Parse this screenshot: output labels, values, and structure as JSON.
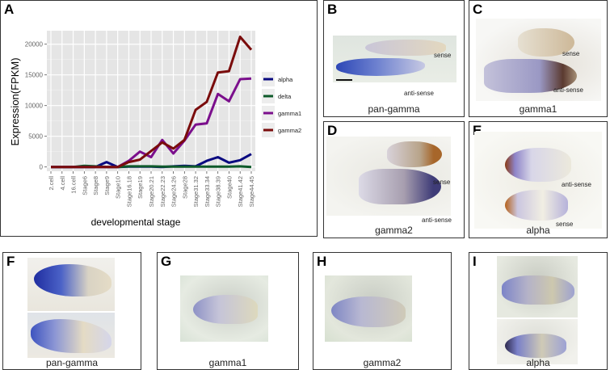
{
  "panels": {
    "A": {
      "label": "A"
    },
    "B": {
      "label": "B",
      "caption": "pan-gamma",
      "annotations": [
        "sense",
        "anti-sense"
      ]
    },
    "C": {
      "label": "C",
      "caption": "gamma1",
      "annotations": [
        "sense",
        "anti-sense"
      ]
    },
    "D": {
      "label": "D",
      "caption": "gamma2",
      "annotations": [
        "sense",
        "anti-sense"
      ]
    },
    "E": {
      "label": "E",
      "caption": "alpha",
      "annotations": [
        "anti-sense",
        "sense"
      ]
    },
    "F": {
      "label": "F",
      "caption": "pan-gamma"
    },
    "G": {
      "label": "G",
      "caption": "gamma1"
    },
    "H": {
      "label": "H",
      "caption": "gamma2"
    },
    "I": {
      "label": "I",
      "caption": "alpha"
    }
  },
  "chart_data": {
    "type": "line",
    "title": "",
    "xlabel": "developmental stage",
    "ylabel": "Expression(FPKM)",
    "ylim": [
      -700,
      22200
    ],
    "yticks": [
      0,
      5000,
      10000,
      15000,
      20000
    ],
    "grid": true,
    "legend_position": "right",
    "categories": [
      "2.cell",
      "4.cell",
      "16.cell",
      "Stage6",
      "Stage8",
      "Stage9",
      "Stage10",
      "Stage16.18",
      "Stage19",
      "Stage20.21",
      "Stage22.23",
      "Stage24.26",
      "Stage28",
      "Stage31.32",
      "Stage33.34",
      "Stage38.39",
      "Stage40",
      "Stage41.42",
      "Stage44.45"
    ],
    "series": [
      {
        "name": "alpha",
        "color": "#0a0a80",
        "values": [
          0,
          0,
          0,
          0,
          0,
          800,
          0,
          50,
          50,
          50,
          0,
          100,
          200,
          100,
          1000,
          1600,
          700,
          1100,
          2100
        ]
      },
      {
        "name": "delta",
        "color": "#0e5a2a",
        "values": [
          0,
          0,
          0,
          200,
          100,
          0,
          0,
          100,
          100,
          100,
          50,
          50,
          50,
          50,
          50,
          50,
          50,
          100,
          0
        ]
      },
      {
        "name": "gamma1",
        "color": "#7b0f8c",
        "values": [
          0,
          0,
          0,
          0,
          0,
          0,
          0,
          1000,
          2500,
          1600,
          4400,
          2200,
          4300,
          6900,
          7100,
          11900,
          10700,
          14300,
          14400
        ]
      },
      {
        "name": "gamma2",
        "color": "#7a0c0c",
        "values": [
          0,
          0,
          0,
          0,
          0,
          0,
          0,
          800,
          1200,
          2600,
          4000,
          3000,
          4400,
          9300,
          10600,
          15400,
          15600,
          21200,
          19100
        ]
      }
    ]
  }
}
